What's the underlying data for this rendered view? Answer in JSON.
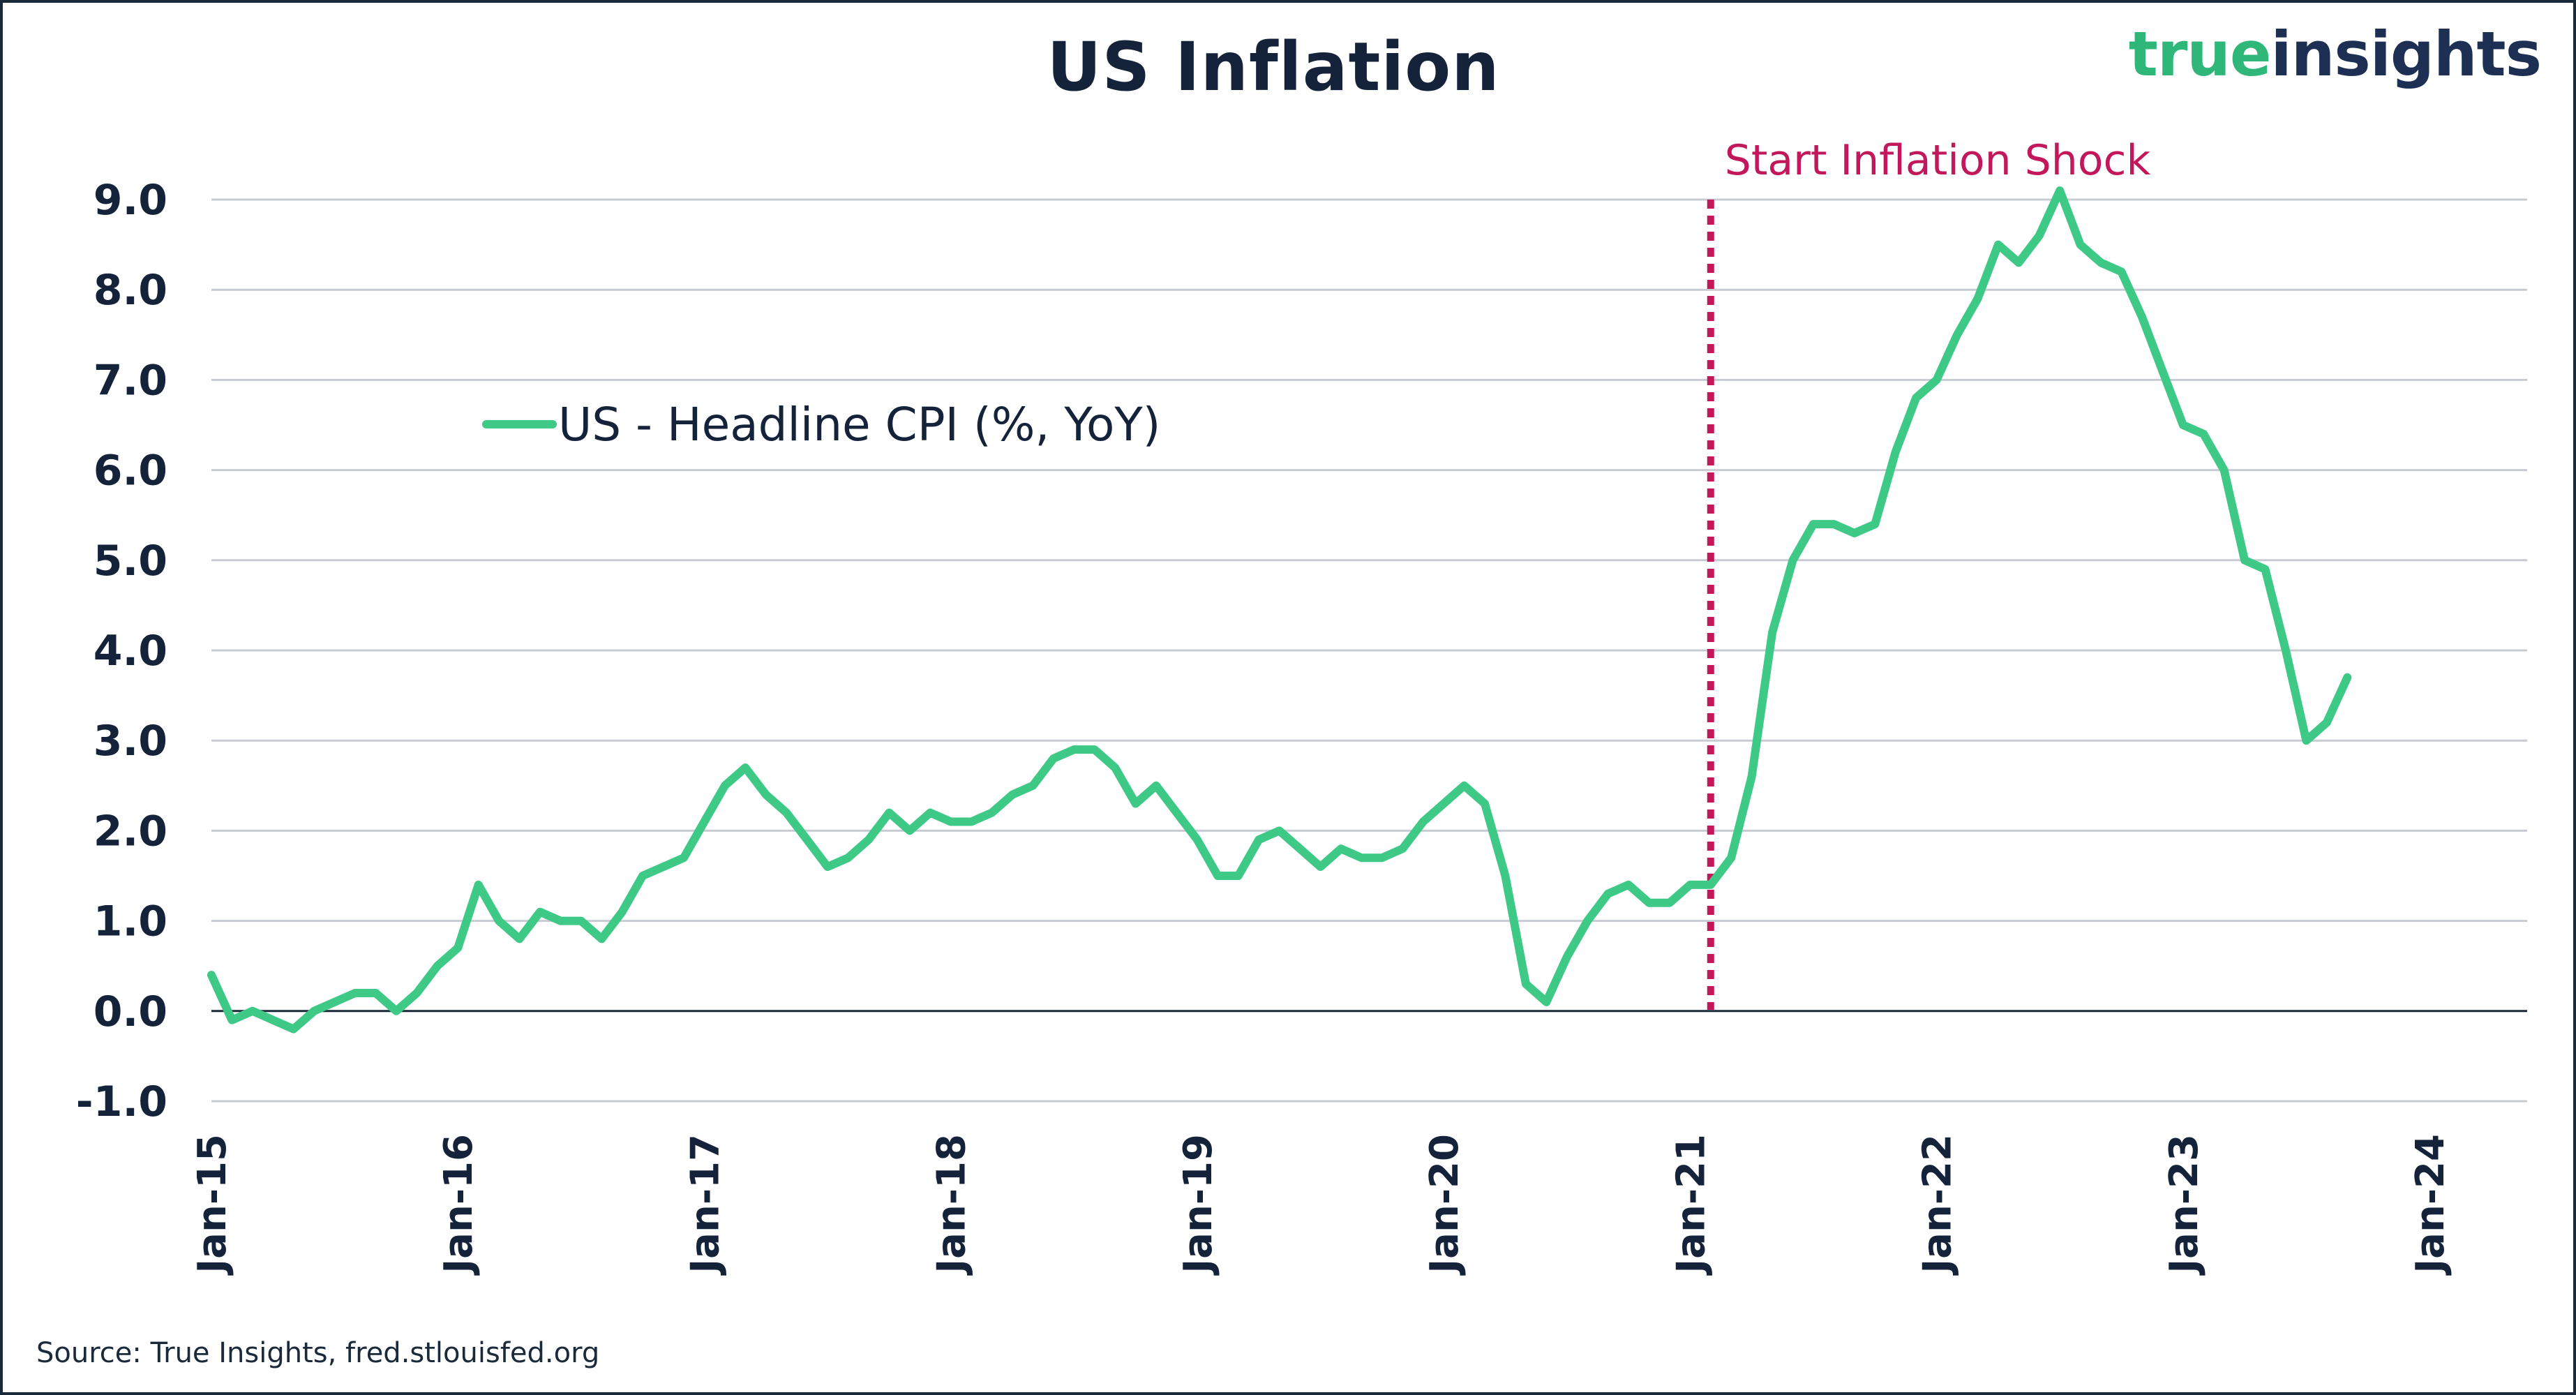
{
  "title": "US Inflation",
  "brand": {
    "part1": "true",
    "part2": "insights"
  },
  "source": "Source: True Insights, fred.stlouisfed.org",
  "colors": {
    "series": "#3ec986",
    "shock_line": "#c2185b",
    "grid": "#c8ccd2",
    "axis": "#1b2a3a",
    "text": "#14233a"
  },
  "chart_data": {
    "type": "line",
    "title": "US Inflation",
    "xlabel": "",
    "ylabel": "",
    "ylim": [
      -1.0,
      9.0
    ],
    "yticks": [
      "9.0",
      "8.0",
      "7.0",
      "6.0",
      "5.0",
      "4.0",
      "3.0",
      "2.0",
      "1.0",
      "0.0",
      "-1.0"
    ],
    "xticks": [
      "Jan-15",
      "Jan-16",
      "Jan-17",
      "Jan-18",
      "Jan-19",
      "Jan-20",
      "Jan-21",
      "Jan-22",
      "Jan-23",
      "Jan-24"
    ],
    "grid": true,
    "legend_position": "upper-left",
    "annotation": {
      "label": "Start Inflation Shock",
      "x": "2021-02"
    },
    "series": [
      {
        "name": "US - Headline CPI (%, YoY)",
        "start": "2015-01",
        "values": [
          0.4,
          -0.1,
          0.0,
          -0.1,
          -0.2,
          0.0,
          0.1,
          0.2,
          0.2,
          0.0,
          0.2,
          0.5,
          0.7,
          1.4,
          1.0,
          0.8,
          1.1,
          1.0,
          1.0,
          0.8,
          1.1,
          1.5,
          1.6,
          1.7,
          2.1,
          2.5,
          2.7,
          2.4,
          2.2,
          1.9,
          1.6,
          1.7,
          1.9,
          2.2,
          2.0,
          2.2,
          2.1,
          2.1,
          2.2,
          2.4,
          2.5,
          2.8,
          2.9,
          2.9,
          2.7,
          2.3,
          2.5,
          2.2,
          1.9,
          1.5,
          1.5,
          1.9,
          2.0,
          1.8,
          1.6,
          1.8,
          1.7,
          1.7,
          1.8,
          2.1,
          2.3,
          2.5,
          2.3,
          1.5,
          0.3,
          0.1,
          0.6,
          1.0,
          1.3,
          1.4,
          1.2,
          1.2,
          1.4,
          1.4,
          1.7,
          2.6,
          4.2,
          5.0,
          5.4,
          5.4,
          5.3,
          5.4,
          6.2,
          6.8,
          7.0,
          7.5,
          7.9,
          8.5,
          8.3,
          8.6,
          9.1,
          8.5,
          8.3,
          8.2,
          7.7,
          7.1,
          6.5,
          6.4,
          6.0,
          5.0,
          4.9,
          4.0,
          3.0,
          3.2,
          3.7
        ]
      }
    ]
  }
}
